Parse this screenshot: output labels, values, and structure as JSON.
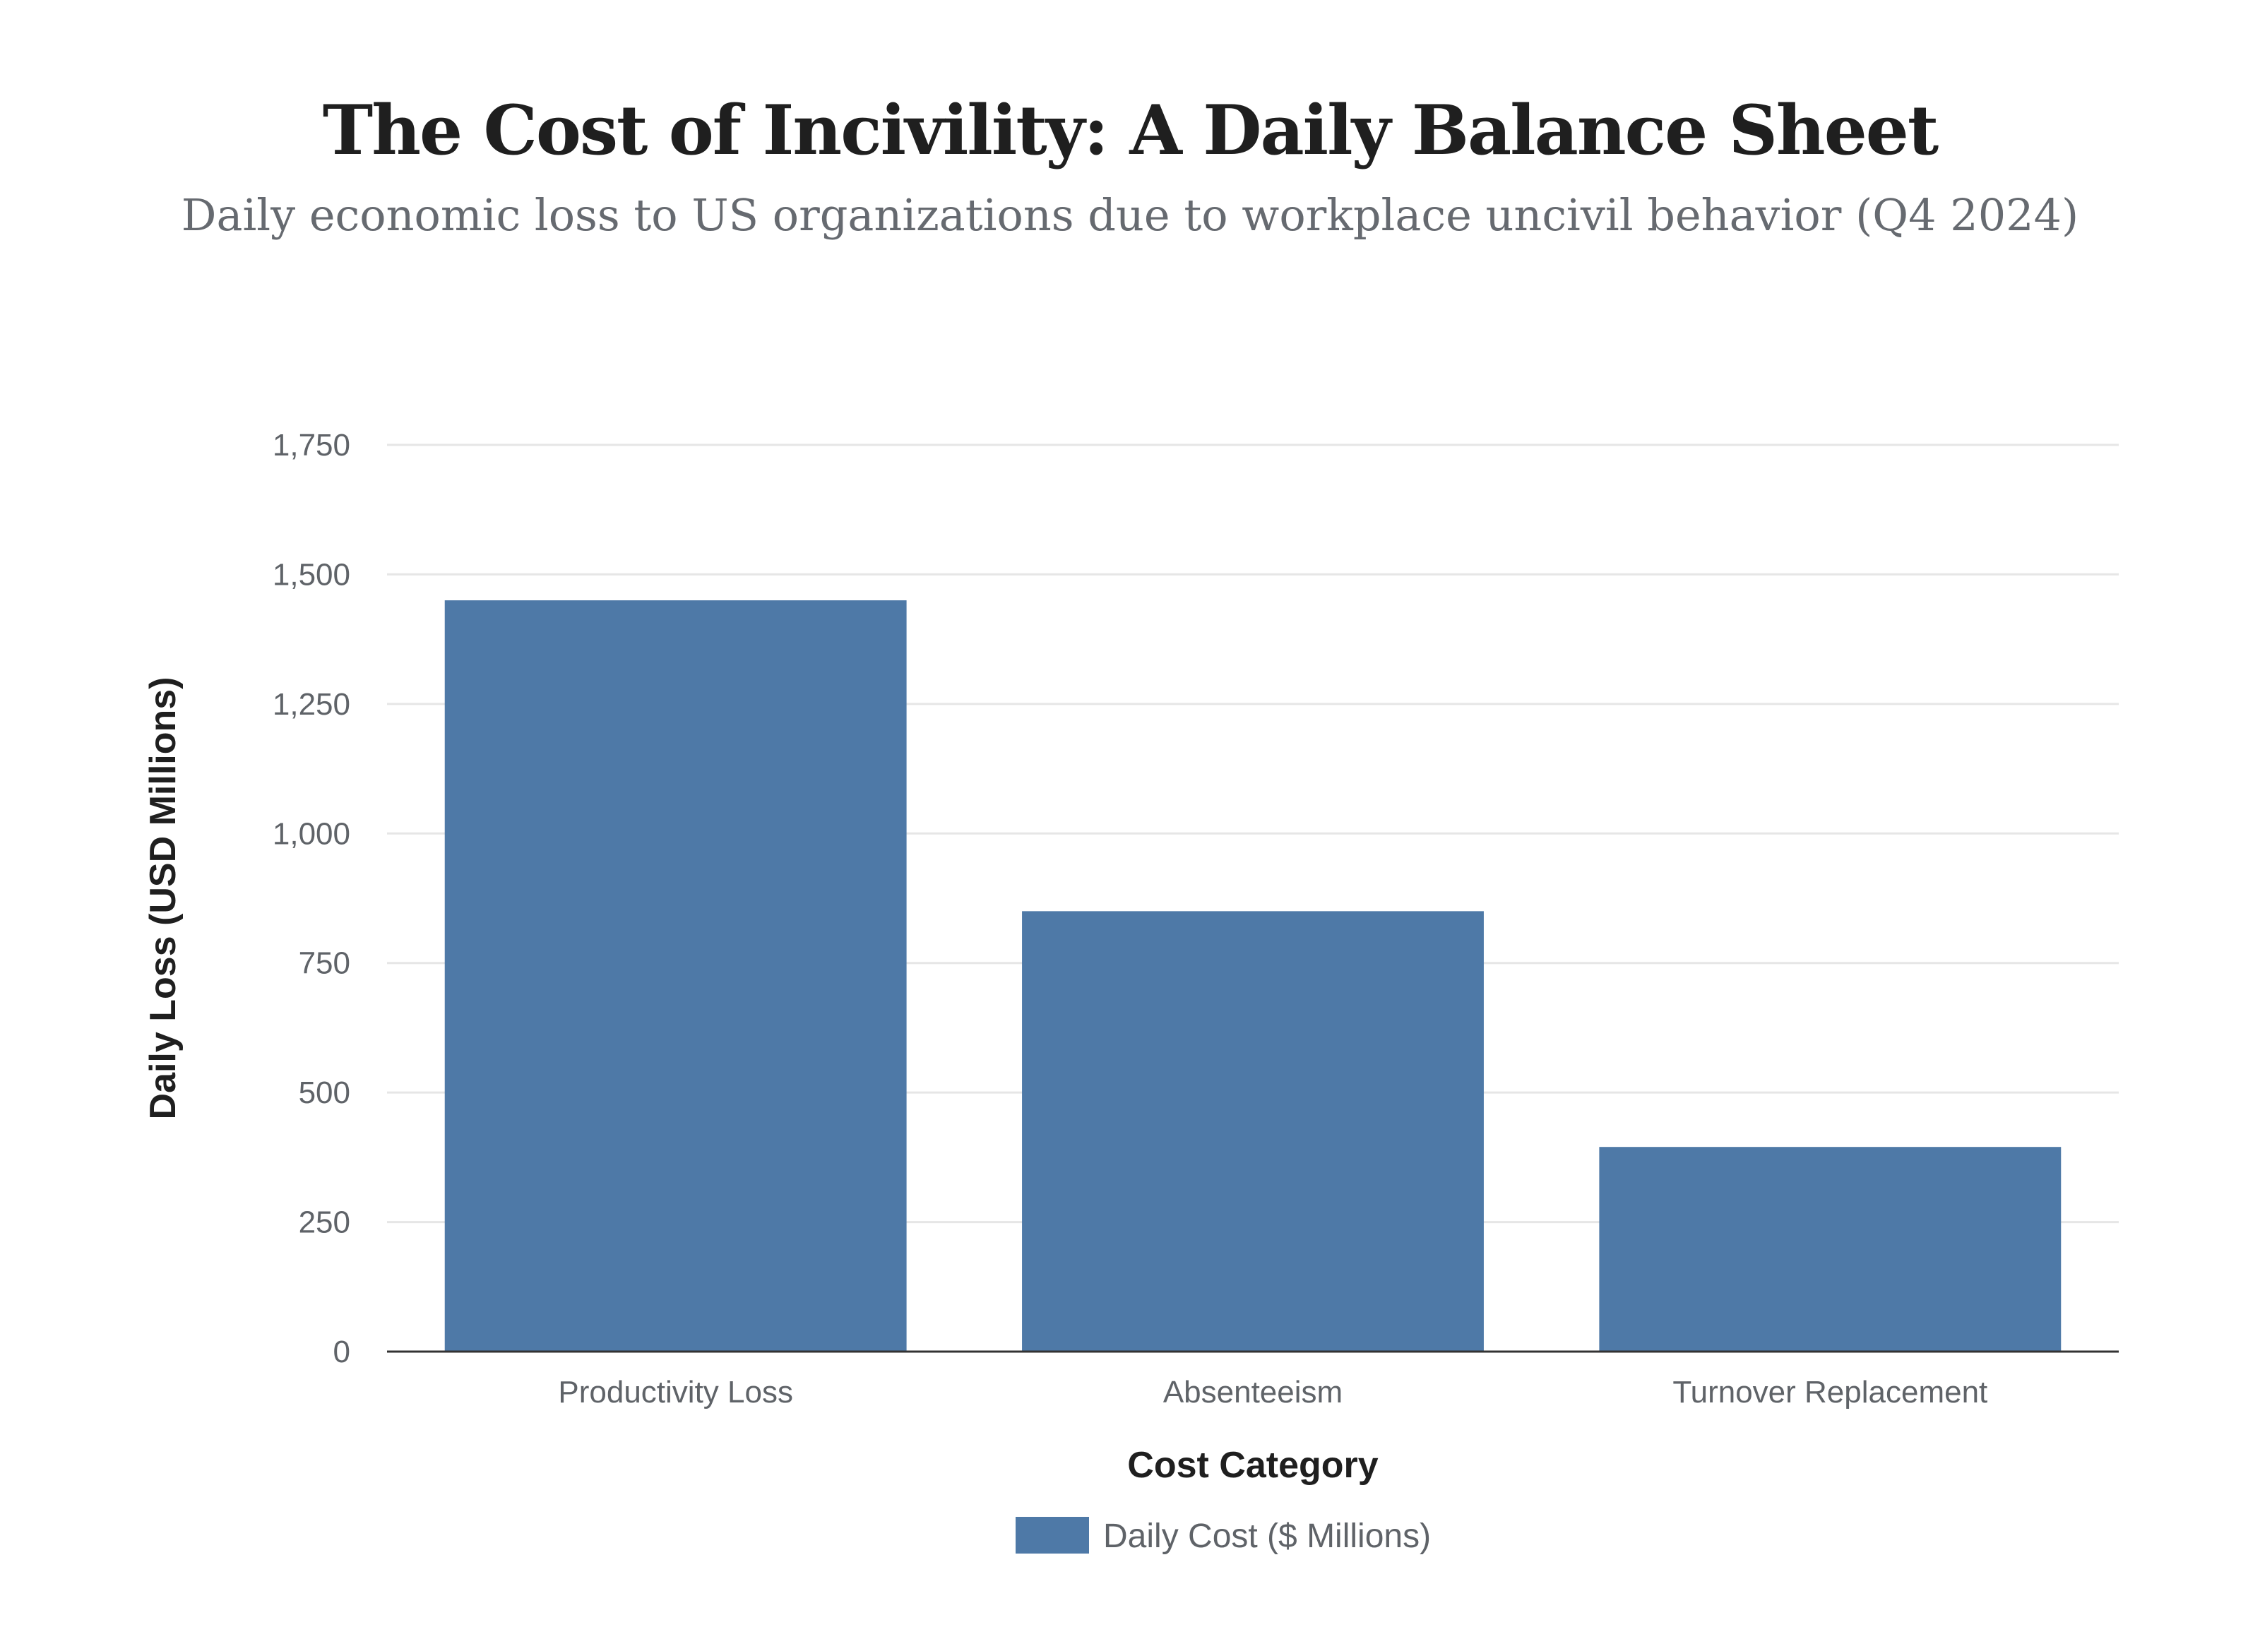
{
  "chart_data": {
    "type": "bar",
    "title": "The Cost of Incivility: A Daily Balance Sheet",
    "subtitle": "Daily economic loss to US organizations due to workplace uncivil behavior (Q4 2024)",
    "categories": [
      "Productivity Loss",
      "Absenteeism",
      "Turnover Replacement"
    ],
    "series": [
      {
        "name": "Daily Cost ($ Millions)",
        "values": [
          1450,
          850,
          395
        ],
        "color": "#4e79a7"
      }
    ],
    "xlabel": "Cost Category",
    "ylabel": "Daily Loss (USD Millions)",
    "ylim": [
      0,
      1750
    ],
    "yticks": [
      0,
      250,
      500,
      750,
      1000,
      1250,
      1500,
      1750
    ],
    "ytick_labels": [
      "0",
      "250",
      "500",
      "750",
      "1,000",
      "1,250",
      "1,500",
      "1,750"
    ],
    "grid": true,
    "legend_position": "bottom-center",
    "colors": {
      "bar": "#4e79a7",
      "grid": "#e6e6e6",
      "axis": "#333333"
    }
  }
}
